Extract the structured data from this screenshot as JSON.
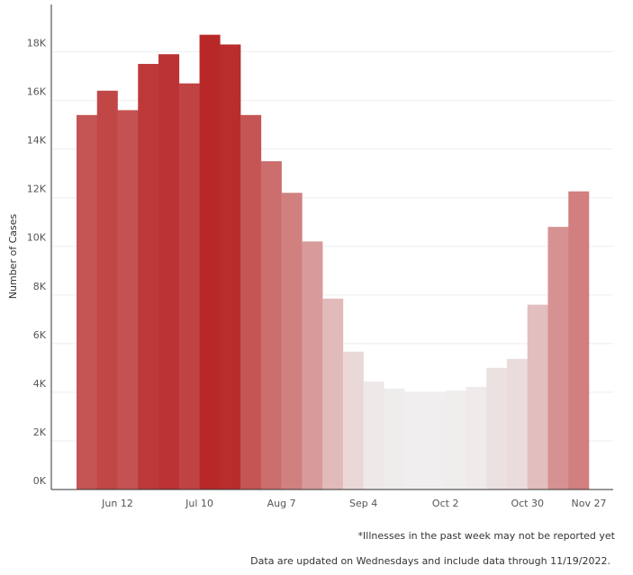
{
  "chart_data": {
    "type": "bar",
    "y_axis_label": "Number of Cases",
    "categories": [
      null,
      "Jun 12",
      null,
      null,
      null,
      "Jul 10",
      null,
      null,
      null,
      "Aug 7",
      null,
      null,
      null,
      "Sep 4",
      null,
      null,
      null,
      "Oct 2",
      null,
      null,
      null,
      "Oct 30",
      null,
      null,
      "Nov 27"
    ],
    "values": [
      15400,
      16400,
      15600,
      17500,
      17900,
      16700,
      18700,
      18300,
      15400,
      13500,
      12200,
      10200,
      7850,
      5670,
      4440,
      4150,
      4000,
      4000,
      4070,
      4220,
      5000,
      5370,
      7600,
      10800,
      12260
    ],
    "color_range": [
      "#f0eeee",
      "#b82828"
    ],
    "ylim": [
      0,
      19500
    ],
    "yticks": [
      {
        "value": 0,
        "label": "0K"
      },
      {
        "value": 2000,
        "label": "2K"
      },
      {
        "value": 4000,
        "label": "4K"
      },
      {
        "value": 6000,
        "label": "6K"
      },
      {
        "value": 8000,
        "label": "8K"
      },
      {
        "value": 10000,
        "label": "10K"
      },
      {
        "value": 12000,
        "label": "12K"
      },
      {
        "value": 14000,
        "label": "14K"
      },
      {
        "value": 16000,
        "label": "16K"
      },
      {
        "value": 18000,
        "label": "18K"
      }
    ],
    "grid": true,
    "notes": [
      "*Illnesses in the past week may not be reported yet",
      "Data are updated on Wednesdays and include data through 11/19/2022."
    ]
  }
}
